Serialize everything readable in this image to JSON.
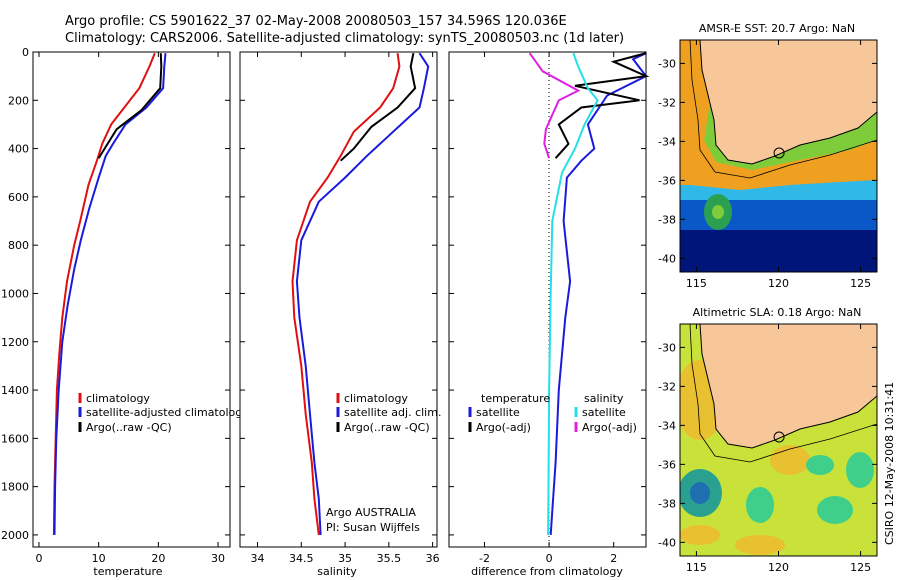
{
  "header": {
    "line1": "Argo profile: CS 5901622_37 02-May-2008 20080503_157 34.596S 120.036E",
    "line2": "Climatology: CARS2006. Satellite-adjusted climatology: synTS_20080503.nc (1d later)"
  },
  "colors": {
    "climatology": "#e01010",
    "satellite": "#1a1adc",
    "argo": "#000000",
    "salinity_satellite": "#22e0e8",
    "salinity_argo": "#e020e0",
    "land": "#f7c79a"
  },
  "footer": {
    "stamp": "CSIRO 12-May-2008 10:31:41"
  },
  "chart_data": [
    {
      "type": "line",
      "xlabel": "temperature",
      "ylabel": "",
      "xlim": [
        -1,
        32
      ],
      "ylim": [
        2050,
        0
      ],
      "xticks": [
        "0",
        "10",
        "20",
        "30"
      ],
      "yticks": [
        "0",
        "200",
        "400",
        "600",
        "800",
        "1000",
        "1200",
        "1400",
        "1600",
        "1800",
        "2000"
      ],
      "legend": [
        "climatology",
        "satellite-adjusted climatology",
        "Argo(..raw -QC)"
      ],
      "legend_position": "lower-right",
      "series": [
        {
          "name": "climatology",
          "color": "#e01010",
          "x": [
            19.4,
            18.5,
            16.8,
            14.3,
            12.1,
            10.6,
            9.7,
            8.3,
            6.9,
            5.9,
            4.7,
            3.9,
            3.4,
            3.0,
            2.8,
            2.6,
            2.5
          ],
          "y": [
            5,
            60,
            150,
            230,
            300,
            380,
            450,
            550,
            700,
            800,
            950,
            1100,
            1250,
            1400,
            1600,
            1800,
            2000
          ]
        },
        {
          "name": "satellite-adjusted climatology",
          "color": "#1a1adc",
          "x": [
            21.2,
            21.0,
            20.8,
            18.0,
            14.5,
            12.4,
            11.2,
            10.0,
            8.4,
            7.0,
            5.9,
            4.8,
            3.9,
            3.3,
            2.9,
            2.7,
            2.6
          ],
          "y": [
            5,
            60,
            150,
            230,
            300,
            380,
            430,
            520,
            650,
            780,
            900,
            1050,
            1200,
            1400,
            1600,
            1800,
            2000
          ]
        },
        {
          "name": "Argo(..raw -QC)",
          "color": "#000000",
          "x": [
            20.4,
            20.5,
            20.3,
            17.2,
            13.0,
            11.0,
            10.0
          ],
          "y": [
            5,
            60,
            150,
            240,
            320,
            400,
            440
          ]
        }
      ]
    },
    {
      "type": "line",
      "xlabel": "salinity",
      "ylabel": "",
      "xlim": [
        33.8,
        36.05
      ],
      "ylim": [
        2050,
        0
      ],
      "xticks": [
        "34",
        "34.5",
        "35",
        "35.5",
        "36"
      ],
      "yticks": [],
      "legend": [
        "climatology",
        "satellite adj. clim.",
        "Argo(..raw -QC)"
      ],
      "legend_position": "lower-right",
      "annotations": [
        "Argo AUSTRALIA",
        "PI: Susan Wijffels"
      ],
      "series": [
        {
          "name": "climatology",
          "color": "#e01010",
          "x": [
            35.6,
            35.62,
            35.55,
            35.4,
            35.1,
            34.95,
            34.8,
            34.6,
            34.45,
            34.4,
            34.42,
            34.5,
            34.55,
            34.62,
            34.65,
            34.7
          ],
          "y": [
            5,
            60,
            150,
            230,
            330,
            430,
            520,
            620,
            780,
            950,
            1100,
            1300,
            1500,
            1700,
            1850,
            2000
          ]
        },
        {
          "name": "satellite adj. clim.",
          "color": "#1a1adc",
          "x": [
            35.85,
            35.95,
            35.9,
            35.85,
            35.55,
            35.25,
            35.0,
            34.7,
            34.5,
            34.45,
            34.48,
            34.55,
            34.6,
            34.65,
            34.7,
            34.72
          ],
          "y": [
            5,
            60,
            150,
            230,
            330,
            430,
            520,
            620,
            780,
            950,
            1100,
            1300,
            1500,
            1700,
            1850,
            2000
          ]
        },
        {
          "name": "Argo(..raw -QC)",
          "color": "#000000",
          "x": [
            35.78,
            35.75,
            35.8,
            35.6,
            35.3,
            35.1,
            34.95
          ],
          "y": [
            5,
            60,
            150,
            230,
            310,
            400,
            450
          ]
        }
      ]
    },
    {
      "type": "line",
      "xlabel": "difference from climatology",
      "ylabel": "",
      "xlim": [
        -3.1,
        3.0
      ],
      "ylim": [
        2050,
        0
      ],
      "xticks": [
        "-2",
        "0",
        "2"
      ],
      "yticks": [],
      "legend": [
        "temperature",
        "satellite",
        "Argo(-adj)",
        "salinity",
        "satellite",
        "Argo(-adj)"
      ],
      "legend_position": "lower-right",
      "series": [
        {
          "name": "satellite",
          "color": "#1a1adc",
          "x": [
            4.0,
            2.6,
            3.2,
            1.8,
            1.2,
            1.4,
            1.0,
            0.55,
            0.45,
            0.65,
            0.5,
            0.3,
            0.2,
            0.1,
            0.05
          ],
          "y": [
            5,
            30,
            100,
            180,
            300,
            400,
            450,
            520,
            700,
            950,
            1100,
            1400,
            1700,
            1900,
            2000
          ]
        },
        {
          "name": "Argo(-adj)",
          "color": "#000000",
          "x": [
            3.5,
            2.0,
            3.0,
            0.8,
            2.8,
            1.0,
            0.3,
            0.6,
            0.2
          ],
          "y": [
            5,
            40,
            100,
            140,
            200,
            230,
            300,
            380,
            440
          ]
        },
        {
          "name": "satellite",
          "color": "#22e0e8",
          "x": [
            0.75,
            0.9,
            1.2,
            1.5,
            1.1,
            0.8,
            0.4,
            0.1,
            0.05,
            0.0,
            -0.02,
            -0.03
          ],
          "y": [
            5,
            60,
            150,
            200,
            300,
            400,
            500,
            700,
            1000,
            1400,
            1800,
            2000
          ]
        },
        {
          "name": "Argo(-adj)",
          "color": "#e020e0",
          "x": [
            -0.6,
            -0.2,
            0.9,
            0.3,
            0.1,
            -0.1,
            -0.15,
            0.0
          ],
          "y": [
            5,
            80,
            160,
            200,
            260,
            320,
            380,
            440
          ]
        }
      ]
    },
    {
      "type": "heatmap",
      "title": "AMSR-E SST: 20.7 Argo: NaN",
      "xlim": [
        114,
        126
      ],
      "ylim": [
        -40.7,
        -28.8
      ],
      "xticks": [
        "115",
        "120",
        "125"
      ],
      "yticks": [
        "-30",
        "-32",
        "-34",
        "-36",
        "-38",
        "-40"
      ],
      "marker": {
        "lon": 120.036,
        "lat": -34.596
      }
    },
    {
      "type": "heatmap",
      "title": "Altimetric SLA: 0.18 Argo: NaN",
      "xlim": [
        114,
        126
      ],
      "ylim": [
        -40.7,
        -28.8
      ],
      "xticks": [
        "115",
        "120",
        "125"
      ],
      "yticks": [
        "-30",
        "-32",
        "-34",
        "-36",
        "-38",
        "-40"
      ],
      "marker": {
        "lon": 120.036,
        "lat": -34.596
      }
    }
  ]
}
